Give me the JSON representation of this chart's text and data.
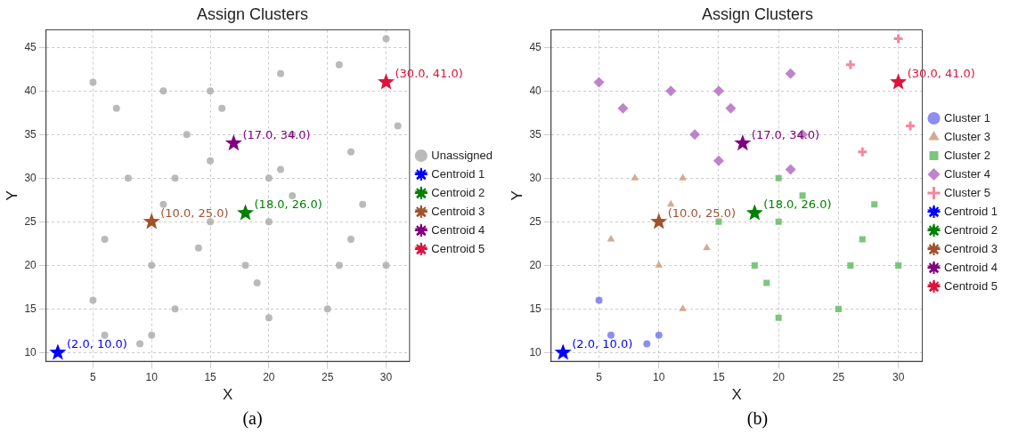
{
  "chart_data": [
    {
      "type": "scatter",
      "title": "Assign Clusters",
      "xlabel": "X",
      "ylabel": "Y",
      "xlim": [
        1,
        32
      ],
      "ylim": [
        9,
        47
      ],
      "xticks": [
        5,
        10,
        15,
        20,
        25,
        30
      ],
      "yticks": [
        10,
        15,
        20,
        25,
        30,
        35,
        40,
        45
      ],
      "grid": true,
      "legend": "right",
      "series": [
        {
          "name": "Unassigned",
          "color": "#a9a9a9",
          "marker": "circle",
          "x": [
            5,
            6,
            9,
            10,
            8,
            12,
            11,
            6,
            14,
            10,
            12,
            20,
            22,
            15,
            20,
            28,
            27,
            18,
            26,
            30,
            19,
            25,
            20,
            5,
            7,
            11,
            15,
            16,
            21,
            13,
            22,
            15,
            21,
            30,
            26,
            31,
            27
          ],
          "values": [
            16,
            12,
            11,
            12,
            30,
            30,
            27,
            23,
            22,
            20,
            15,
            30,
            28,
            25,
            25,
            27,
            23,
            20,
            20,
            20,
            18,
            15,
            14,
            41,
            38,
            40,
            40,
            38,
            42,
            35,
            35,
            32,
            31,
            46,
            43,
            36,
            33
          ]
        },
        {
          "name": "Centroid 1",
          "color": "#0000ff",
          "marker": "star",
          "x": [
            2
          ],
          "values": [
            10
          ]
        },
        {
          "name": "Centroid 2",
          "color": "#008000",
          "marker": "star",
          "x": [
            18
          ],
          "values": [
            26
          ]
        },
        {
          "name": "Centroid 3",
          "color": "#a0522d",
          "marker": "star",
          "x": [
            10
          ],
          "values": [
            25
          ]
        },
        {
          "name": "Centroid 4",
          "color": "#800080",
          "marker": "star",
          "x": [
            17
          ],
          "values": [
            34
          ]
        },
        {
          "name": "Centroid 5",
          "color": "#dc143c",
          "marker": "star",
          "x": [
            30
          ],
          "values": [
            41
          ]
        }
      ],
      "annotations": [
        {
          "text": "(2.0, 10.0)",
          "x": 2,
          "y": 10
        },
        {
          "text": "(18.0, 26.0)",
          "x": 18,
          "y": 26
        },
        {
          "text": "(10.0, 25.0)",
          "x": 10,
          "y": 25
        },
        {
          "text": "(17.0, 34.0)",
          "x": 17,
          "y": 34
        },
        {
          "text": "(30.0, 41.0)",
          "x": 30,
          "y": 41
        },
        "(a)"
      ]
    },
    {
      "type": "scatter",
      "title": "Assign Clusters",
      "xlabel": "X",
      "ylabel": "Y",
      "xlim": [
        1,
        32
      ],
      "ylim": [
        9,
        47
      ],
      "xticks": [
        5,
        10,
        15,
        20,
        25,
        30
      ],
      "yticks": [
        10,
        15,
        20,
        25,
        30,
        35,
        40,
        45
      ],
      "grid": true,
      "legend": "right",
      "series": [
        {
          "name": "Cluster 1",
          "color": "#7070f0",
          "marker": "circle",
          "x": [
            5,
            6,
            9,
            10
          ],
          "values": [
            16,
            12,
            11,
            12
          ]
        },
        {
          "name": "Cluster 3",
          "color": "#c8967a",
          "marker": "triangle",
          "x": [
            8,
            12,
            11,
            6,
            14,
            10,
            12
          ],
          "values": [
            30,
            30,
            27,
            23,
            22,
            20,
            15
          ]
        },
        {
          "name": "Cluster 2",
          "color": "#5cb85c",
          "marker": "square",
          "x": [
            20,
            22,
            15,
            20,
            28,
            27,
            18,
            26,
            30,
            19,
            25,
            20
          ],
          "values": [
            30,
            28,
            25,
            25,
            27,
            23,
            20,
            20,
            20,
            18,
            15,
            14
          ]
        },
        {
          "name": "Cluster 4",
          "color": "#b065be",
          "marker": "diamond",
          "x": [
            5,
            7,
            11,
            15,
            16,
            21,
            13,
            22,
            15,
            21
          ],
          "values": [
            41,
            38,
            40,
            40,
            38,
            42,
            35,
            35,
            32,
            31
          ]
        },
        {
          "name": "Cluster 5",
          "color": "#f06a86",
          "marker": "cross",
          "x": [
            30,
            26,
            31,
            27
          ],
          "values": [
            46,
            43,
            36,
            33
          ]
        },
        {
          "name": "Centroid 1",
          "color": "#0000ff",
          "marker": "star",
          "x": [
            2
          ],
          "values": [
            10
          ]
        },
        {
          "name": "Centroid 2",
          "color": "#008000",
          "marker": "star",
          "x": [
            18
          ],
          "values": [
            26
          ]
        },
        {
          "name": "Centroid 3",
          "color": "#a0522d",
          "marker": "star",
          "x": [
            10
          ],
          "values": [
            25
          ]
        },
        {
          "name": "Centroid 4",
          "color": "#800080",
          "marker": "star",
          "x": [
            17
          ],
          "values": [
            34
          ]
        },
        {
          "name": "Centroid 5",
          "color": "#dc143c",
          "marker": "star",
          "x": [
            30
          ],
          "values": [
            41
          ]
        }
      ],
      "annotations": [
        {
          "text": "(2.0, 10.0)",
          "x": 2,
          "y": 10
        },
        {
          "text": "(18.0, 26.0)",
          "x": 18,
          "y": 26
        },
        {
          "text": "(10.0, 25.0)",
          "x": 10,
          "y": 25
        },
        {
          "text": "(17.0, 34.0)",
          "x": 17,
          "y": 34
        },
        {
          "text": "(30.0, 41.0)",
          "x": 30,
          "y": 41
        },
        "(b)"
      ]
    }
  ]
}
